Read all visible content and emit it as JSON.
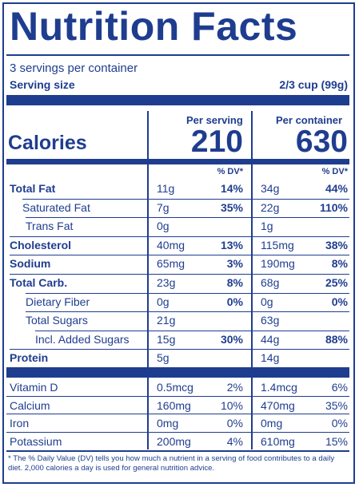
{
  "title": "Nutrition Facts",
  "servings": "3 servings per container",
  "serving_size_label": "Serving size",
  "serving_size_value": "2/3 cup (99g)",
  "calories_label": "Calories",
  "per_serving_label": "Per serving",
  "per_container_label": "Per container",
  "calories_serving": "210",
  "calories_container": "630",
  "dv_header": "% DV*",
  "nutrients": [
    {
      "name": "Total Fat",
      "bold": true,
      "indent": 0,
      "s_amt": "11g",
      "s_dv": "14%",
      "c_amt": "34g",
      "c_dv": "44%"
    },
    {
      "name": "Saturated Fat",
      "bold": false,
      "indent": 1,
      "s_amt": "7g",
      "s_dv": "35%",
      "c_amt": "22g",
      "c_dv": "110%"
    },
    {
      "name": "Trans Fat",
      "bold": false,
      "indent": 2,
      "s_amt": "0g",
      "s_dv": "",
      "c_amt": "1g",
      "c_dv": ""
    },
    {
      "name": "Cholesterol",
      "bold": true,
      "indent": 0,
      "s_amt": "40mg",
      "s_dv": "13%",
      "c_amt": "115mg",
      "c_dv": "38%"
    },
    {
      "name": "Sodium",
      "bold": true,
      "indent": 0,
      "s_amt": "65mg",
      "s_dv": "3%",
      "c_amt": "190mg",
      "c_dv": "8%"
    },
    {
      "name": "Total Carb.",
      "bold": true,
      "indent": 0,
      "s_amt": "23g",
      "s_dv": "8%",
      "c_amt": "68g",
      "c_dv": "25%"
    },
    {
      "name": "Dietary Fiber",
      "bold": false,
      "indent": 2,
      "s_amt": "0g",
      "s_dv": "0%",
      "c_amt": "0g",
      "c_dv": "0%"
    },
    {
      "name": "Total Sugars",
      "bold": false,
      "indent": 2,
      "s_amt": "21g",
      "s_dv": "",
      "c_amt": "63g",
      "c_dv": ""
    },
    {
      "name": "Incl. Added Sugars",
      "bold": false,
      "indent": 3,
      "s_amt": "15g",
      "s_dv": "30%",
      "c_amt": "44g",
      "c_dv": "88%"
    },
    {
      "name": "Protein",
      "bold": true,
      "indent": 0,
      "s_amt": "5g",
      "s_dv": "",
      "c_amt": "14g",
      "c_dv": ""
    }
  ],
  "vitamins": [
    {
      "name": "Vitamin D",
      "s_amt": "0.5mcg",
      "s_dv": "2%",
      "c_amt": "1.4mcg",
      "c_dv": "6%"
    },
    {
      "name": "Calcium",
      "s_amt": "160mg",
      "s_dv": "10%",
      "c_amt": "470mg",
      "c_dv": "35%"
    },
    {
      "name": "Iron",
      "s_amt": "0mg",
      "s_dv": "0%",
      "c_amt": "0mg",
      "c_dv": "0%"
    },
    {
      "name": "Potassium",
      "s_amt": "200mg",
      "s_dv": "4%",
      "c_amt": "610mg",
      "c_dv": "15%"
    }
  ],
  "footnote": "* The % Daily Value (DV) tells you how much a nutrient in a serving of food contributes to a daily diet. 2,000 calories a day is used for general nutrition advice."
}
